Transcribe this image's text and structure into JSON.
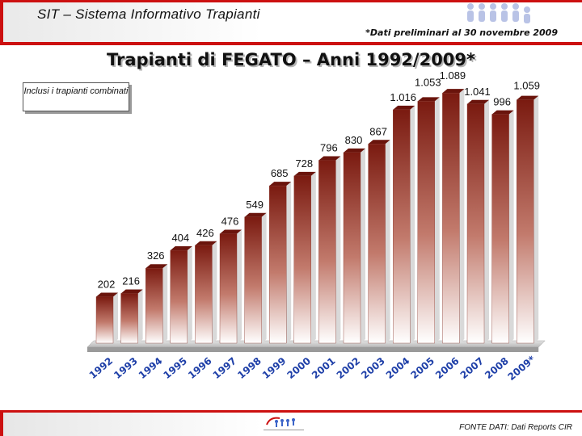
{
  "header": {
    "app_title": "SIT – Sistema Informativo Trapianti",
    "note": "*Dati preliminari al 30 novembre 2009"
  },
  "annotation": "Inclusi i trapianti combinati",
  "footer": {
    "source": "FONTE DATI: Dati Reports CIR"
  },
  "colors": {
    "accent": "#cc1010",
    "bar_top": "#7a1a10",
    "bar_bottom": "#ffffff"
  },
  "chart_data": {
    "type": "bar",
    "title": "Trapianti di FEGATO – Anni 1992/2009*",
    "categories": [
      "1992",
      "1993",
      "1994",
      "1995",
      "1996",
      "1997",
      "1998",
      "1999",
      "2000",
      "2001",
      "2002",
      "2003",
      "2004",
      "2005",
      "2006",
      "2007",
      "2008",
      "2009*"
    ],
    "values": [
      202,
      216,
      326,
      404,
      426,
      476,
      549,
      685,
      728,
      796,
      830,
      867,
      1016,
      1053,
      1089,
      1041,
      996,
      1059
    ],
    "value_labels": [
      "202",
      "216",
      "326",
      "404",
      "426",
      "476",
      "549",
      "685",
      "728",
      "796",
      "830",
      "867",
      "1.016",
      "1.053",
      "1.089",
      "1.041",
      "996",
      "1.059"
    ],
    "ylim": [
      0,
      1100
    ],
    "grid": false,
    "legend": "none"
  }
}
